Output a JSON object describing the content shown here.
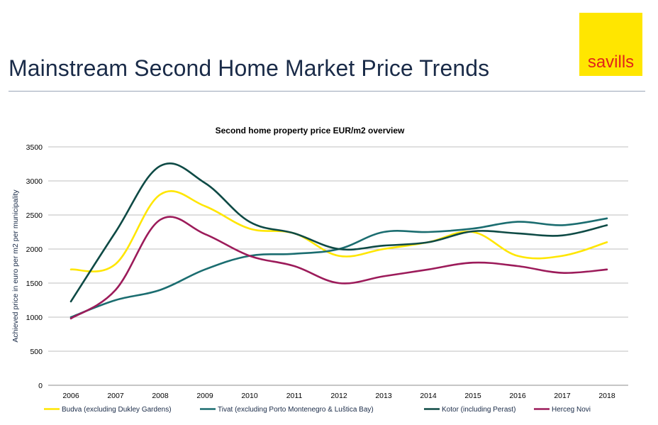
{
  "header": {
    "title": "Mainstream Second Home Market Price Trends",
    "logo_text": "savills"
  },
  "colors": {
    "title": "#1a2b48",
    "logo_bg": "#ffe600",
    "logo_text": "#e2231a",
    "grid": "#bfbfbf"
  },
  "chart_data": {
    "type": "line",
    "title": "Second home property price EUR/m2 overview",
    "xlabel": "",
    "ylabel": "Achieved price in euro per m2 per municipality",
    "ylim": [
      0,
      3500
    ],
    "yticks": [
      0,
      500,
      1000,
      1500,
      2000,
      2500,
      3000,
      3500
    ],
    "grid": true,
    "legend_position": "bottom",
    "categories": [
      "2006",
      "2007",
      "2008",
      "2009",
      "2010",
      "2011",
      "2012",
      "2013",
      "2014",
      "2015",
      "2016",
      "2017",
      "2018"
    ],
    "series": [
      {
        "name": "Budva (excluding Dukley Gardens)",
        "color": "#ffe600",
        "values": [
          1700,
          1780,
          2800,
          2630,
          2300,
          2230,
          1900,
          2000,
          2100,
          2250,
          1900,
          1900,
          2100
        ]
      },
      {
        "name": "Tivat (excluding Porto Montenegro & Luštica Bay)",
        "color": "#1b6d70",
        "values": [
          1000,
          1250,
          1400,
          1700,
          1900,
          1930,
          2000,
          2250,
          2250,
          2300,
          2400,
          2350,
          2450
        ]
      },
      {
        "name": "Kotor (including Perast)",
        "color": "#0e4a45",
        "values": [
          1230,
          2250,
          3220,
          2970,
          2400,
          2230,
          2000,
          2050,
          2100,
          2260,
          2230,
          2200,
          2350
        ]
      },
      {
        "name": "Herceg Novi",
        "color": "#9c1b5a",
        "values": [
          980,
          1400,
          2430,
          2220,
          1900,
          1750,
          1500,
          1600,
          1700,
          1800,
          1750,
          1650,
          1700
        ]
      }
    ]
  }
}
